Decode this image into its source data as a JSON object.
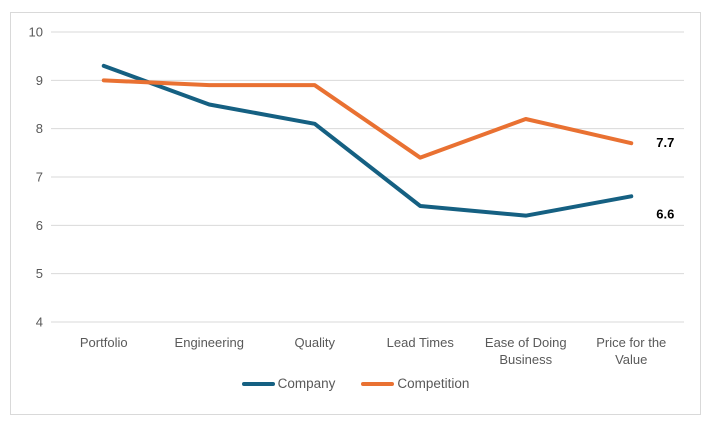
{
  "chart_data": {
    "type": "line",
    "title": "",
    "xlabel": "",
    "ylabel": "",
    "categories": [
      "Portfolio",
      "Engineering",
      "Quality",
      "Lead Times",
      "Ease of Doing Business",
      "Price for the Value"
    ],
    "series": [
      {
        "name": "Company",
        "color": "#156082",
        "values": [
          9.3,
          8.5,
          8.1,
          6.4,
          6.2,
          6.6
        ],
        "end_label": "6.6",
        "end_label_dy": 18
      },
      {
        "name": "Competition",
        "color": "#E97132",
        "values": [
          9.0,
          8.9,
          8.9,
          7.4,
          8.2,
          7.7
        ],
        "end_label": "7.7",
        "end_label_dy": 0
      }
    ],
    "ylim": [
      4,
      10
    ],
    "yticks": [
      10,
      9,
      8,
      7,
      6,
      5,
      4
    ],
    "grid": true,
    "legend_position": "bottom-center",
    "colors": {
      "gridline": "#D9D9D9",
      "frame_border": "#D9D9D9",
      "axis_text": "#595959",
      "category_text": "#595959",
      "legend_text": "#595959",
      "data_label_text": "#000000",
      "background": "#FFFFFF"
    }
  }
}
